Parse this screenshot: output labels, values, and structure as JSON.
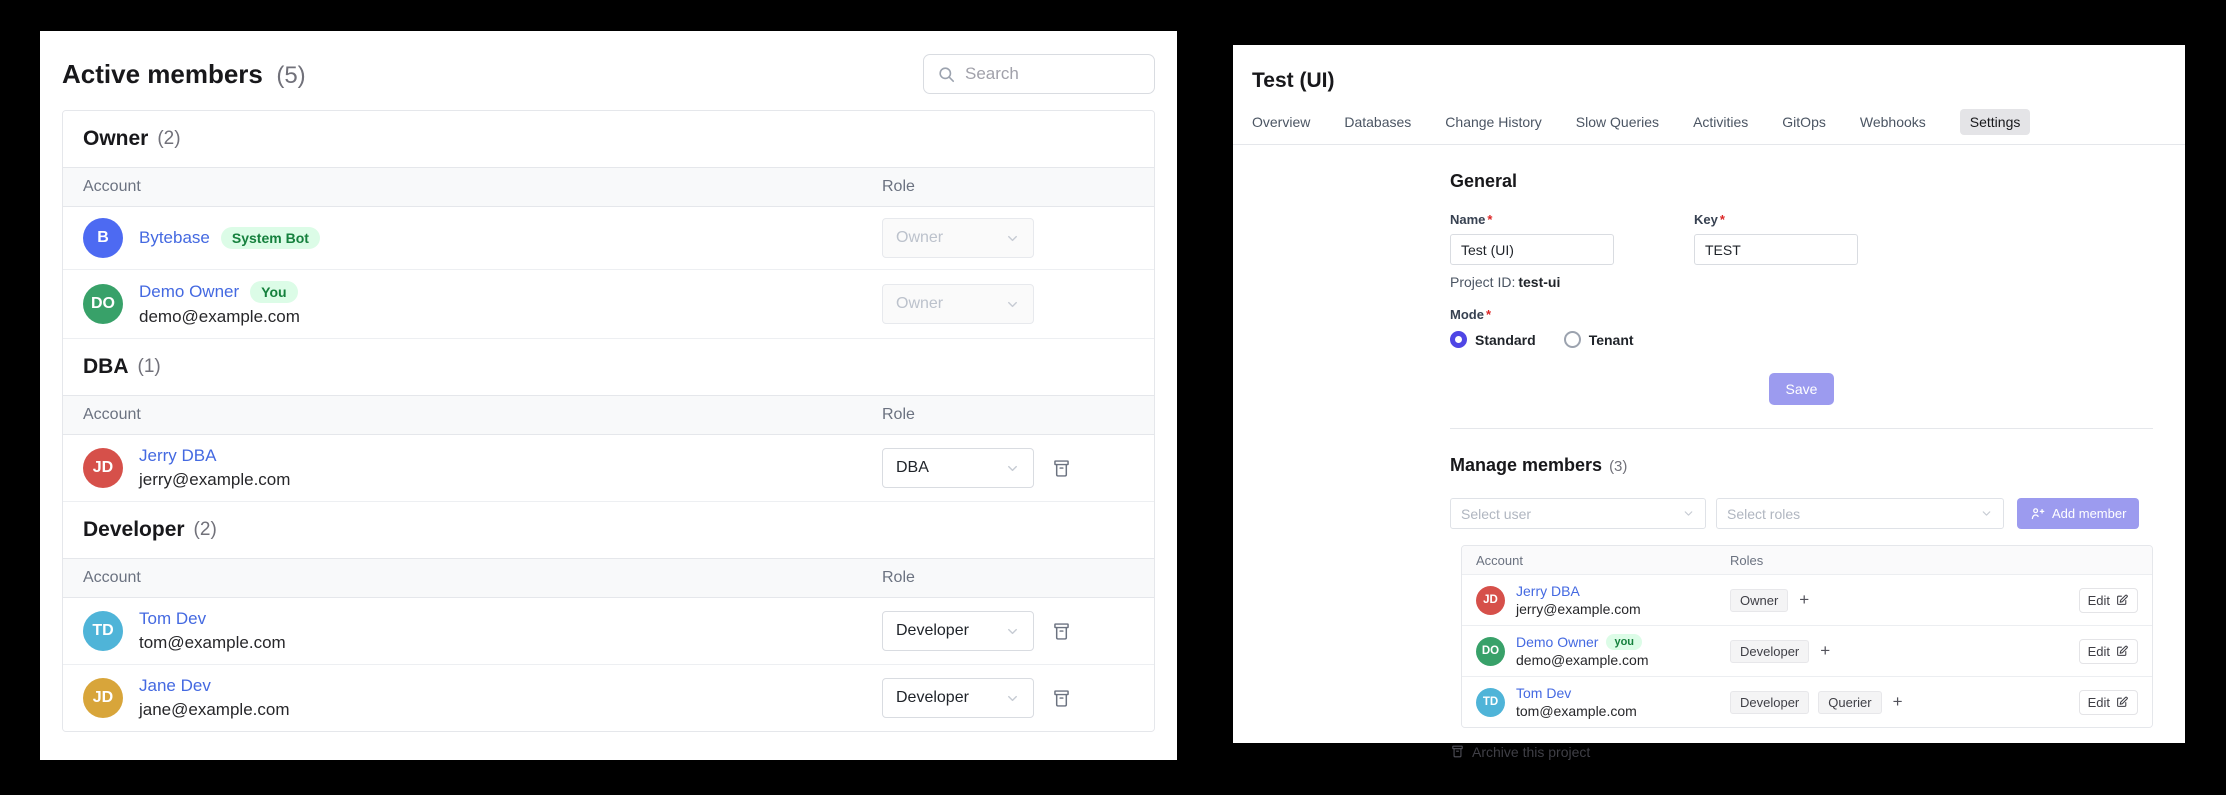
{
  "colors": {
    "page_background": "#000000",
    "card_background": "#ffffff",
    "link_blue": "#4469e1",
    "badge_green_bg": "#dcfce7",
    "badge_green_text": "#15803d",
    "accent_indigo": "#4f46e5",
    "button_indigo": "#9c9bef",
    "border": "#e5e7eb"
  },
  "left_panel": {
    "title": "Active members",
    "count": "(5)",
    "search_placeholder": "Search",
    "columns": {
      "account": "Account",
      "role": "Role"
    },
    "groups": [
      {
        "name": "Owner",
        "count": "(2)",
        "members": [
          {
            "initials": "B",
            "avatar_color": "#4d6af2",
            "name": "Bytebase",
            "badge": "System Bot",
            "email": "",
            "role": "Owner",
            "role_disabled": true,
            "removable": false
          },
          {
            "initials": "DO",
            "avatar_color": "#38a169",
            "name": "Demo Owner",
            "badge": "You",
            "email": "demo@example.com",
            "role": "Owner",
            "role_disabled": true,
            "removable": false
          }
        ]
      },
      {
        "name": "DBA",
        "count": "(1)",
        "members": [
          {
            "initials": "JD",
            "avatar_color": "#d6504a",
            "name": "Jerry DBA",
            "badge": "",
            "email": "jerry@example.com",
            "role": "DBA",
            "role_disabled": false,
            "removable": true
          }
        ]
      },
      {
        "name": "Developer",
        "count": "(2)",
        "members": [
          {
            "initials": "TD",
            "avatar_color": "#4fb4d8",
            "name": "Tom Dev",
            "badge": "",
            "email": "tom@example.com",
            "role": "Developer",
            "role_disabled": false,
            "removable": true
          },
          {
            "initials": "JD",
            "avatar_color": "#d8a53a",
            "name": "Jane Dev",
            "badge": "",
            "email": "jane@example.com",
            "role": "Developer",
            "role_disabled": false,
            "removable": true
          }
        ]
      }
    ]
  },
  "right_panel": {
    "title": "Test (UI)",
    "tabs": [
      {
        "label": "Overview",
        "active": false
      },
      {
        "label": "Databases",
        "active": false
      },
      {
        "label": "Change History",
        "active": false
      },
      {
        "label": "Slow Queries",
        "active": false
      },
      {
        "label": "Activities",
        "active": false
      },
      {
        "label": "GitOps",
        "active": false
      },
      {
        "label": "Webhooks",
        "active": false
      },
      {
        "label": "Settings",
        "active": true
      }
    ],
    "general": {
      "heading": "General",
      "required_mark": "*",
      "name_label": "Name",
      "name_value": "Test (UI)",
      "key_label": "Key",
      "key_value": "TEST",
      "project_id_label": "Project ID:",
      "project_id_value": "test-ui",
      "mode_label": "Mode",
      "modes": [
        {
          "label": "Standard",
          "selected": true
        },
        {
          "label": "Tenant",
          "selected": false
        }
      ],
      "save_label": "Save"
    },
    "members": {
      "heading": "Manage members",
      "count": "(3)",
      "select_user_placeholder": "Select user",
      "select_roles_placeholder": "Select roles",
      "add_member_label": "Add member",
      "columns": {
        "account": "Account",
        "roles": "Roles"
      },
      "add_role_symbol": "+",
      "rows": [
        {
          "initials": "JD",
          "avatar_color": "#d6504a",
          "name": "Jerry DBA",
          "badge": "",
          "email": "jerry@example.com",
          "roles": [
            "Owner"
          ],
          "edit_label": "Edit"
        },
        {
          "initials": "DO",
          "avatar_color": "#38a169",
          "name": "Demo Owner",
          "badge": "you",
          "email": "demo@example.com",
          "roles": [
            "Developer"
          ],
          "edit_label": "Edit"
        },
        {
          "initials": "TD",
          "avatar_color": "#4fb4d8",
          "name": "Tom Dev",
          "badge": "",
          "email": "tom@example.com",
          "roles": [
            "Developer",
            "Querier"
          ],
          "edit_label": "Edit"
        }
      ]
    },
    "archive_label": "Archive this project"
  }
}
